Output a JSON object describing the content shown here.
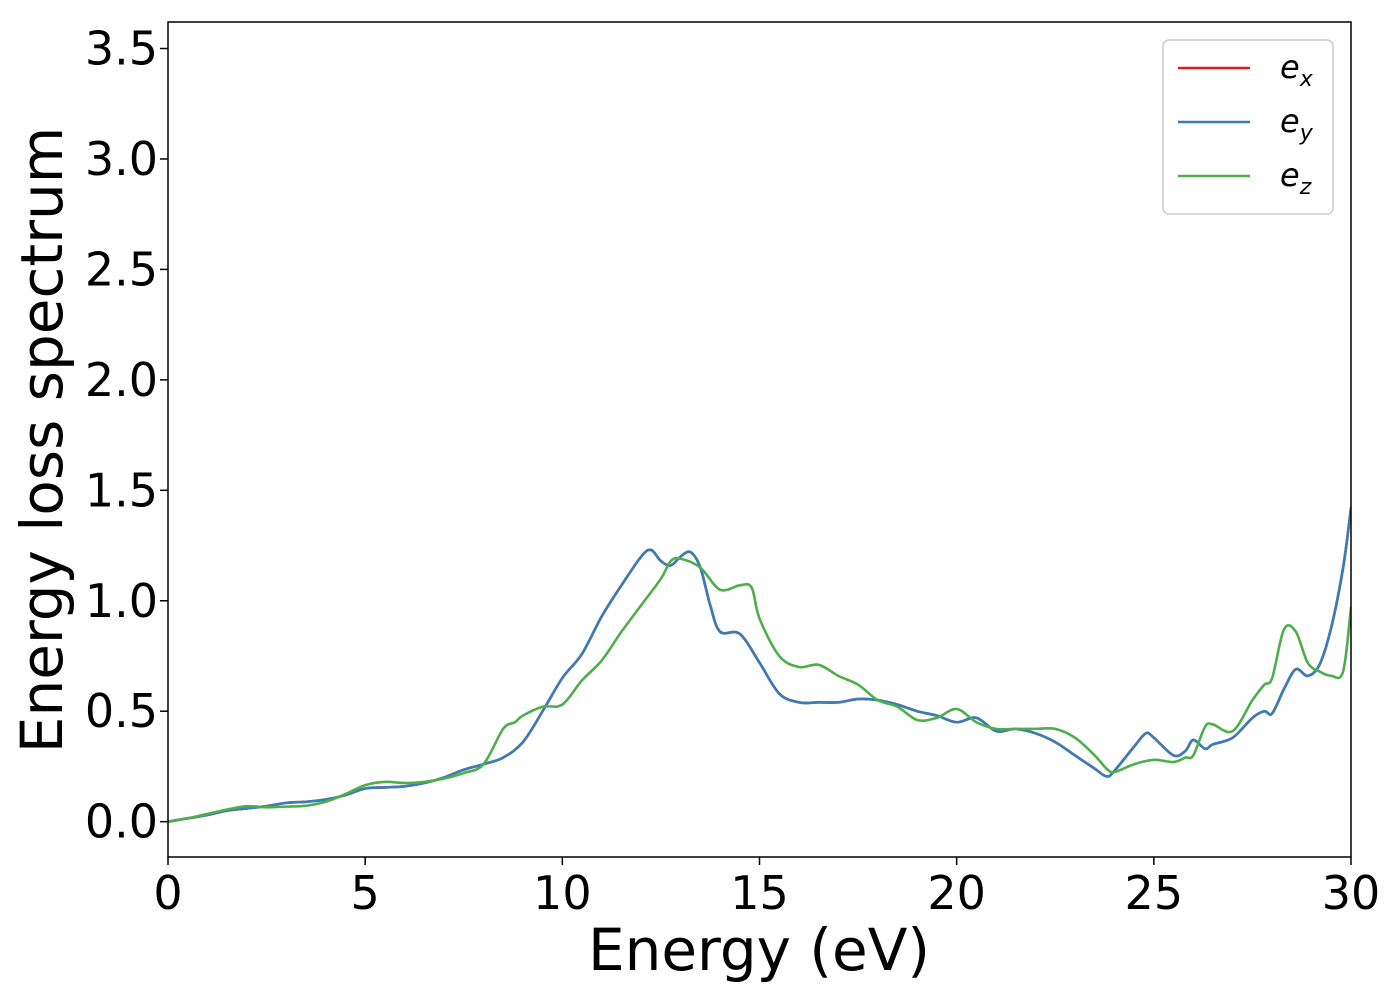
{
  "chart_data": {
    "type": "line",
    "title": "",
    "xlabel": "Energy (eV)",
    "ylabel": "Energy loss spectrum",
    "xlim": [
      0,
      30
    ],
    "ylim": [
      -0.16,
      3.62
    ],
    "xticks": [
      0,
      5,
      10,
      15,
      20,
      25,
      30
    ],
    "xtick_labels": [
      "0",
      "5",
      "10",
      "15",
      "20",
      "25",
      "30"
    ],
    "yticks": [
      0.0,
      0.5,
      1.0,
      1.5,
      2.0,
      2.5,
      3.0,
      3.5
    ],
    "ytick_labels": [
      "0.0",
      "0.5",
      "1.0",
      "1.5",
      "2.0",
      "2.5",
      "3.0",
      "3.5"
    ],
    "grid": false,
    "legend_position": "top-right",
    "series": [
      {
        "name": "e",
        "subscript": "x",
        "color": "#e41a1c",
        "x": [
          0,
          0.5,
          1,
          1.5,
          2,
          2.5,
          3,
          3.5,
          4,
          4.5,
          5,
          5.5,
          6,
          6.5,
          7,
          7.5,
          8,
          8.5,
          9,
          9.5,
          10,
          10.5,
          11,
          11.5,
          12,
          12.25,
          12.5,
          12.75,
          13,
          13.25,
          13.5,
          13.75,
          14,
          14.5,
          15,
          15.5,
          16,
          16.5,
          17,
          17.5,
          18,
          18.5,
          19,
          19.5,
          20,
          20.5,
          21,
          21.5,
          22,
          22.5,
          23,
          23.5,
          23.8,
          24,
          24.5,
          24.8,
          25,
          25.5,
          25.8,
          26,
          26.3,
          26.5,
          27,
          27.5,
          27.8,
          28,
          28.3,
          28.6,
          28.9,
          29.2,
          29.5,
          29.8,
          30
        ],
        "values": [
          0.0,
          0.015,
          0.03,
          0.05,
          0.06,
          0.07,
          0.085,
          0.09,
          0.1,
          0.12,
          0.15,
          0.155,
          0.16,
          0.175,
          0.2,
          0.235,
          0.26,
          0.29,
          0.36,
          0.5,
          0.65,
          0.76,
          0.93,
          1.07,
          1.2,
          1.23,
          1.18,
          1.16,
          1.2,
          1.22,
          1.15,
          0.98,
          0.86,
          0.85,
          0.72,
          0.58,
          0.54,
          0.54,
          0.54,
          0.555,
          0.55,
          0.53,
          0.5,
          0.48,
          0.45,
          0.47,
          0.41,
          0.42,
          0.4,
          0.36,
          0.3,
          0.24,
          0.205,
          0.23,
          0.34,
          0.4,
          0.38,
          0.3,
          0.32,
          0.37,
          0.33,
          0.35,
          0.38,
          0.47,
          0.5,
          0.49,
          0.6,
          0.69,
          0.66,
          0.71,
          0.88,
          1.15,
          1.42
        ]
      },
      {
        "name": "e",
        "subscript": "y",
        "color": "#377eb8",
        "x": [
          0,
          0.5,
          1,
          1.5,
          2,
          2.5,
          3,
          3.5,
          4,
          4.5,
          5,
          5.5,
          6,
          6.5,
          7,
          7.5,
          8,
          8.5,
          9,
          9.5,
          10,
          10.5,
          11,
          11.5,
          12,
          12.25,
          12.5,
          12.75,
          13,
          13.25,
          13.5,
          13.75,
          14,
          14.5,
          15,
          15.5,
          16,
          16.5,
          17,
          17.5,
          18,
          18.5,
          19,
          19.5,
          20,
          20.5,
          21,
          21.5,
          22,
          22.5,
          23,
          23.5,
          23.8,
          24,
          24.5,
          24.8,
          25,
          25.5,
          25.8,
          26,
          26.3,
          26.5,
          27,
          27.5,
          27.8,
          28,
          28.3,
          28.6,
          28.9,
          29.2,
          29.5,
          29.8,
          30
        ],
        "values": [
          0.0,
          0.015,
          0.03,
          0.05,
          0.06,
          0.07,
          0.085,
          0.09,
          0.1,
          0.12,
          0.15,
          0.155,
          0.16,
          0.175,
          0.2,
          0.235,
          0.26,
          0.29,
          0.36,
          0.5,
          0.65,
          0.76,
          0.93,
          1.07,
          1.2,
          1.23,
          1.18,
          1.16,
          1.2,
          1.22,
          1.15,
          0.98,
          0.86,
          0.85,
          0.72,
          0.58,
          0.54,
          0.54,
          0.54,
          0.555,
          0.55,
          0.53,
          0.5,
          0.48,
          0.45,
          0.47,
          0.41,
          0.42,
          0.4,
          0.36,
          0.3,
          0.24,
          0.205,
          0.23,
          0.34,
          0.4,
          0.38,
          0.3,
          0.32,
          0.37,
          0.33,
          0.35,
          0.38,
          0.47,
          0.5,
          0.49,
          0.6,
          0.69,
          0.66,
          0.71,
          0.88,
          1.15,
          1.42
        ]
      },
      {
        "name": "e",
        "subscript": "z",
        "color": "#4daf4a",
        "x": [
          0,
          0.5,
          1,
          1.5,
          2,
          2.5,
          3,
          3.5,
          4,
          4.5,
          5,
          5.5,
          6,
          6.5,
          7,
          7.5,
          8,
          8.5,
          8.8,
          9,
          9.5,
          10,
          10.5,
          11,
          11.5,
          12,
          12.5,
          12.75,
          13,
          13.5,
          14,
          14.5,
          14.8,
          15,
          15.5,
          16,
          16.5,
          17,
          17.5,
          18,
          18.5,
          19,
          19.5,
          20,
          20.5,
          21,
          21.5,
          22,
          22.5,
          23,
          23.5,
          23.8,
          24,
          24.5,
          25,
          25.5,
          25.8,
          26,
          26.3,
          26.5,
          27,
          27.5,
          27.8,
          28,
          28.3,
          28.6,
          28.9,
          29.2,
          29.5,
          29.8,
          30
        ],
        "values": [
          0.0,
          0.015,
          0.035,
          0.055,
          0.07,
          0.065,
          0.068,
          0.072,
          0.09,
          0.125,
          0.165,
          0.18,
          0.175,
          0.18,
          0.195,
          0.22,
          0.26,
          0.42,
          0.45,
          0.48,
          0.52,
          0.53,
          0.64,
          0.73,
          0.86,
          0.98,
          1.1,
          1.18,
          1.19,
          1.15,
          1.05,
          1.07,
          1.06,
          0.92,
          0.75,
          0.7,
          0.71,
          0.66,
          0.62,
          0.55,
          0.52,
          0.46,
          0.47,
          0.51,
          0.45,
          0.42,
          0.42,
          0.42,
          0.42,
          0.38,
          0.3,
          0.24,
          0.225,
          0.26,
          0.28,
          0.27,
          0.29,
          0.3,
          0.43,
          0.44,
          0.41,
          0.55,
          0.62,
          0.65,
          0.87,
          0.86,
          0.72,
          0.68,
          0.66,
          0.68,
          0.97
        ]
      }
    ]
  }
}
